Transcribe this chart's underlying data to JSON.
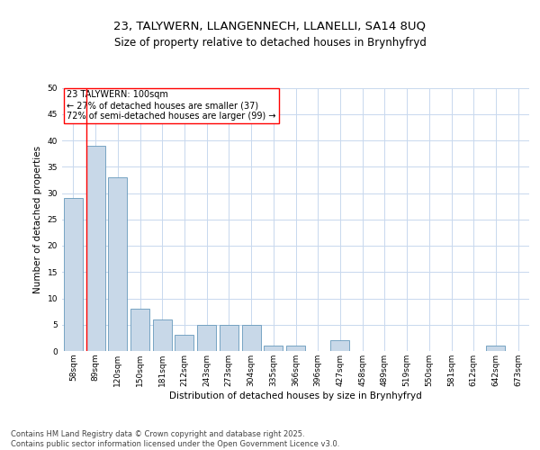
{
  "title_line1": "23, TALYWERN, LLANGENNECH, LLANELLI, SA14 8UQ",
  "title_line2": "Size of property relative to detached houses in Brynhyfryd",
  "xlabel": "Distribution of detached houses by size in Brynhyfryd",
  "ylabel": "Number of detached properties",
  "categories": [
    "58sqm",
    "89sqm",
    "120sqm",
    "150sqm",
    "181sqm",
    "212sqm",
    "243sqm",
    "273sqm",
    "304sqm",
    "335sqm",
    "366sqm",
    "396sqm",
    "427sqm",
    "458sqm",
    "489sqm",
    "519sqm",
    "550sqm",
    "581sqm",
    "612sqm",
    "642sqm",
    "673sqm"
  ],
  "values": [
    29,
    39,
    33,
    8,
    6,
    3,
    5,
    5,
    5,
    1,
    1,
    0,
    2,
    0,
    0,
    0,
    0,
    0,
    0,
    1,
    0
  ],
  "bar_color": "#c8d8e8",
  "bar_edge_color": "#6699bb",
  "annotation_box_text": "23 TALYWERN: 100sqm\n← 27% of detached houses are smaller (37)\n72% of semi-detached houses are larger (99) →",
  "annotation_box_edge_color": "red",
  "vline_color": "red",
  "grid_color": "#c8d8ee",
  "background_color": "white",
  "ylim": [
    0,
    50
  ],
  "footer_text": "Contains HM Land Registry data © Crown copyright and database right 2025.\nContains public sector information licensed under the Open Government Licence v3.0.",
  "title_fontsize": 9.5,
  "subtitle_fontsize": 8.5,
  "axis_label_fontsize": 7.5,
  "tick_fontsize": 6.5,
  "annotation_fontsize": 7,
  "footer_fontsize": 6
}
